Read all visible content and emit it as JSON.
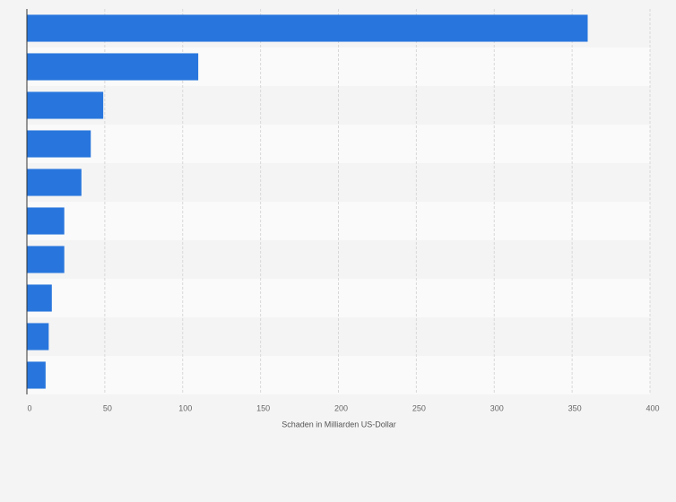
{
  "chart_data": {
    "type": "bar",
    "orientation": "horizontal",
    "x_label": "Schaden in Milliarden US-Dollar",
    "categories": [
      null,
      null,
      null,
      null,
      null,
      null,
      null,
      null,
      null,
      null
    ],
    "values": [
      360,
      110,
      49,
      41,
      35,
      24,
      24,
      16,
      14,
      12
    ],
    "color": "#2876dd",
    "xlim": [
      0,
      400
    ],
    "xticks": [
      0,
      50,
      100,
      150,
      200,
      250,
      300,
      350,
      400
    ],
    "grid": true
  }
}
